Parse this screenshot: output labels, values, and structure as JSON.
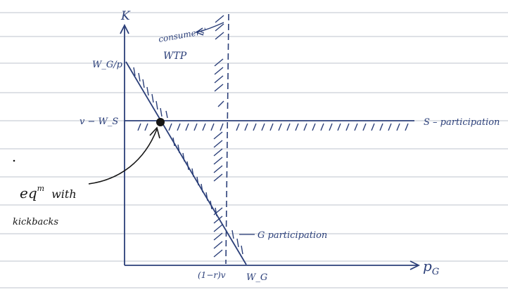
{
  "axes": {
    "y_label": "K",
    "x_label": "p",
    "x_label_subscript": "G"
  },
  "y_ticks": {
    "top": "W_G/p",
    "middle": "v − W_S"
  },
  "x_ticks": {
    "left": "(1−r)v",
    "right": "W_G"
  },
  "annotations": {
    "consumers_wtp_line1": "consumers'",
    "consumers_wtp_line2": "WTP",
    "s_participation": "S – participation",
    "g_participation": "G participation",
    "eqm_line1": "eq",
    "eqm_superscript": "m",
    "eqm_with": "with",
    "eqm_line2": "kickbacks"
  },
  "colors": {
    "ink": "#2b3f79",
    "pencil": "#151515",
    "ruled_line": "#c9cfd8"
  }
}
